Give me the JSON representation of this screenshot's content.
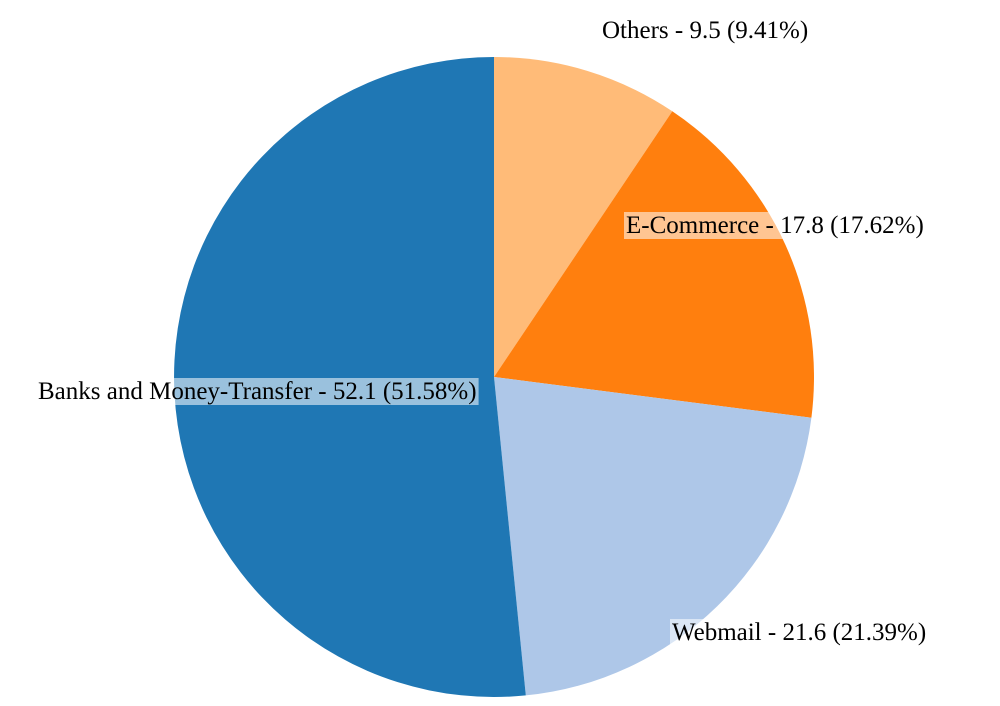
{
  "chart_data": {
    "type": "pie",
    "start_angle_deg": 0,
    "direction": "clockwise",
    "slices": [
      {
        "label": "Others - 9.5 (9.41%)",
        "name": "Others",
        "value": 9.5,
        "percent": 9.41,
        "color": "#ffbb78"
      },
      {
        "label": "E-Commerce - 17.8 (17.62%)",
        "name": "E-Commerce",
        "value": 17.8,
        "percent": 17.62,
        "color": "#ff7f0e"
      },
      {
        "label": "Webmail - 21.6 (21.39%)",
        "name": "Webmail",
        "value": 21.6,
        "percent": 21.39,
        "color": "#aec7e8"
      },
      {
        "label": "Banks and Money-Transfer - 52.1 (51.58%)",
        "name": "Banks and Money-Transfer",
        "value": 52.1,
        "percent": 51.58,
        "color": "#1f77b4"
      }
    ]
  }
}
